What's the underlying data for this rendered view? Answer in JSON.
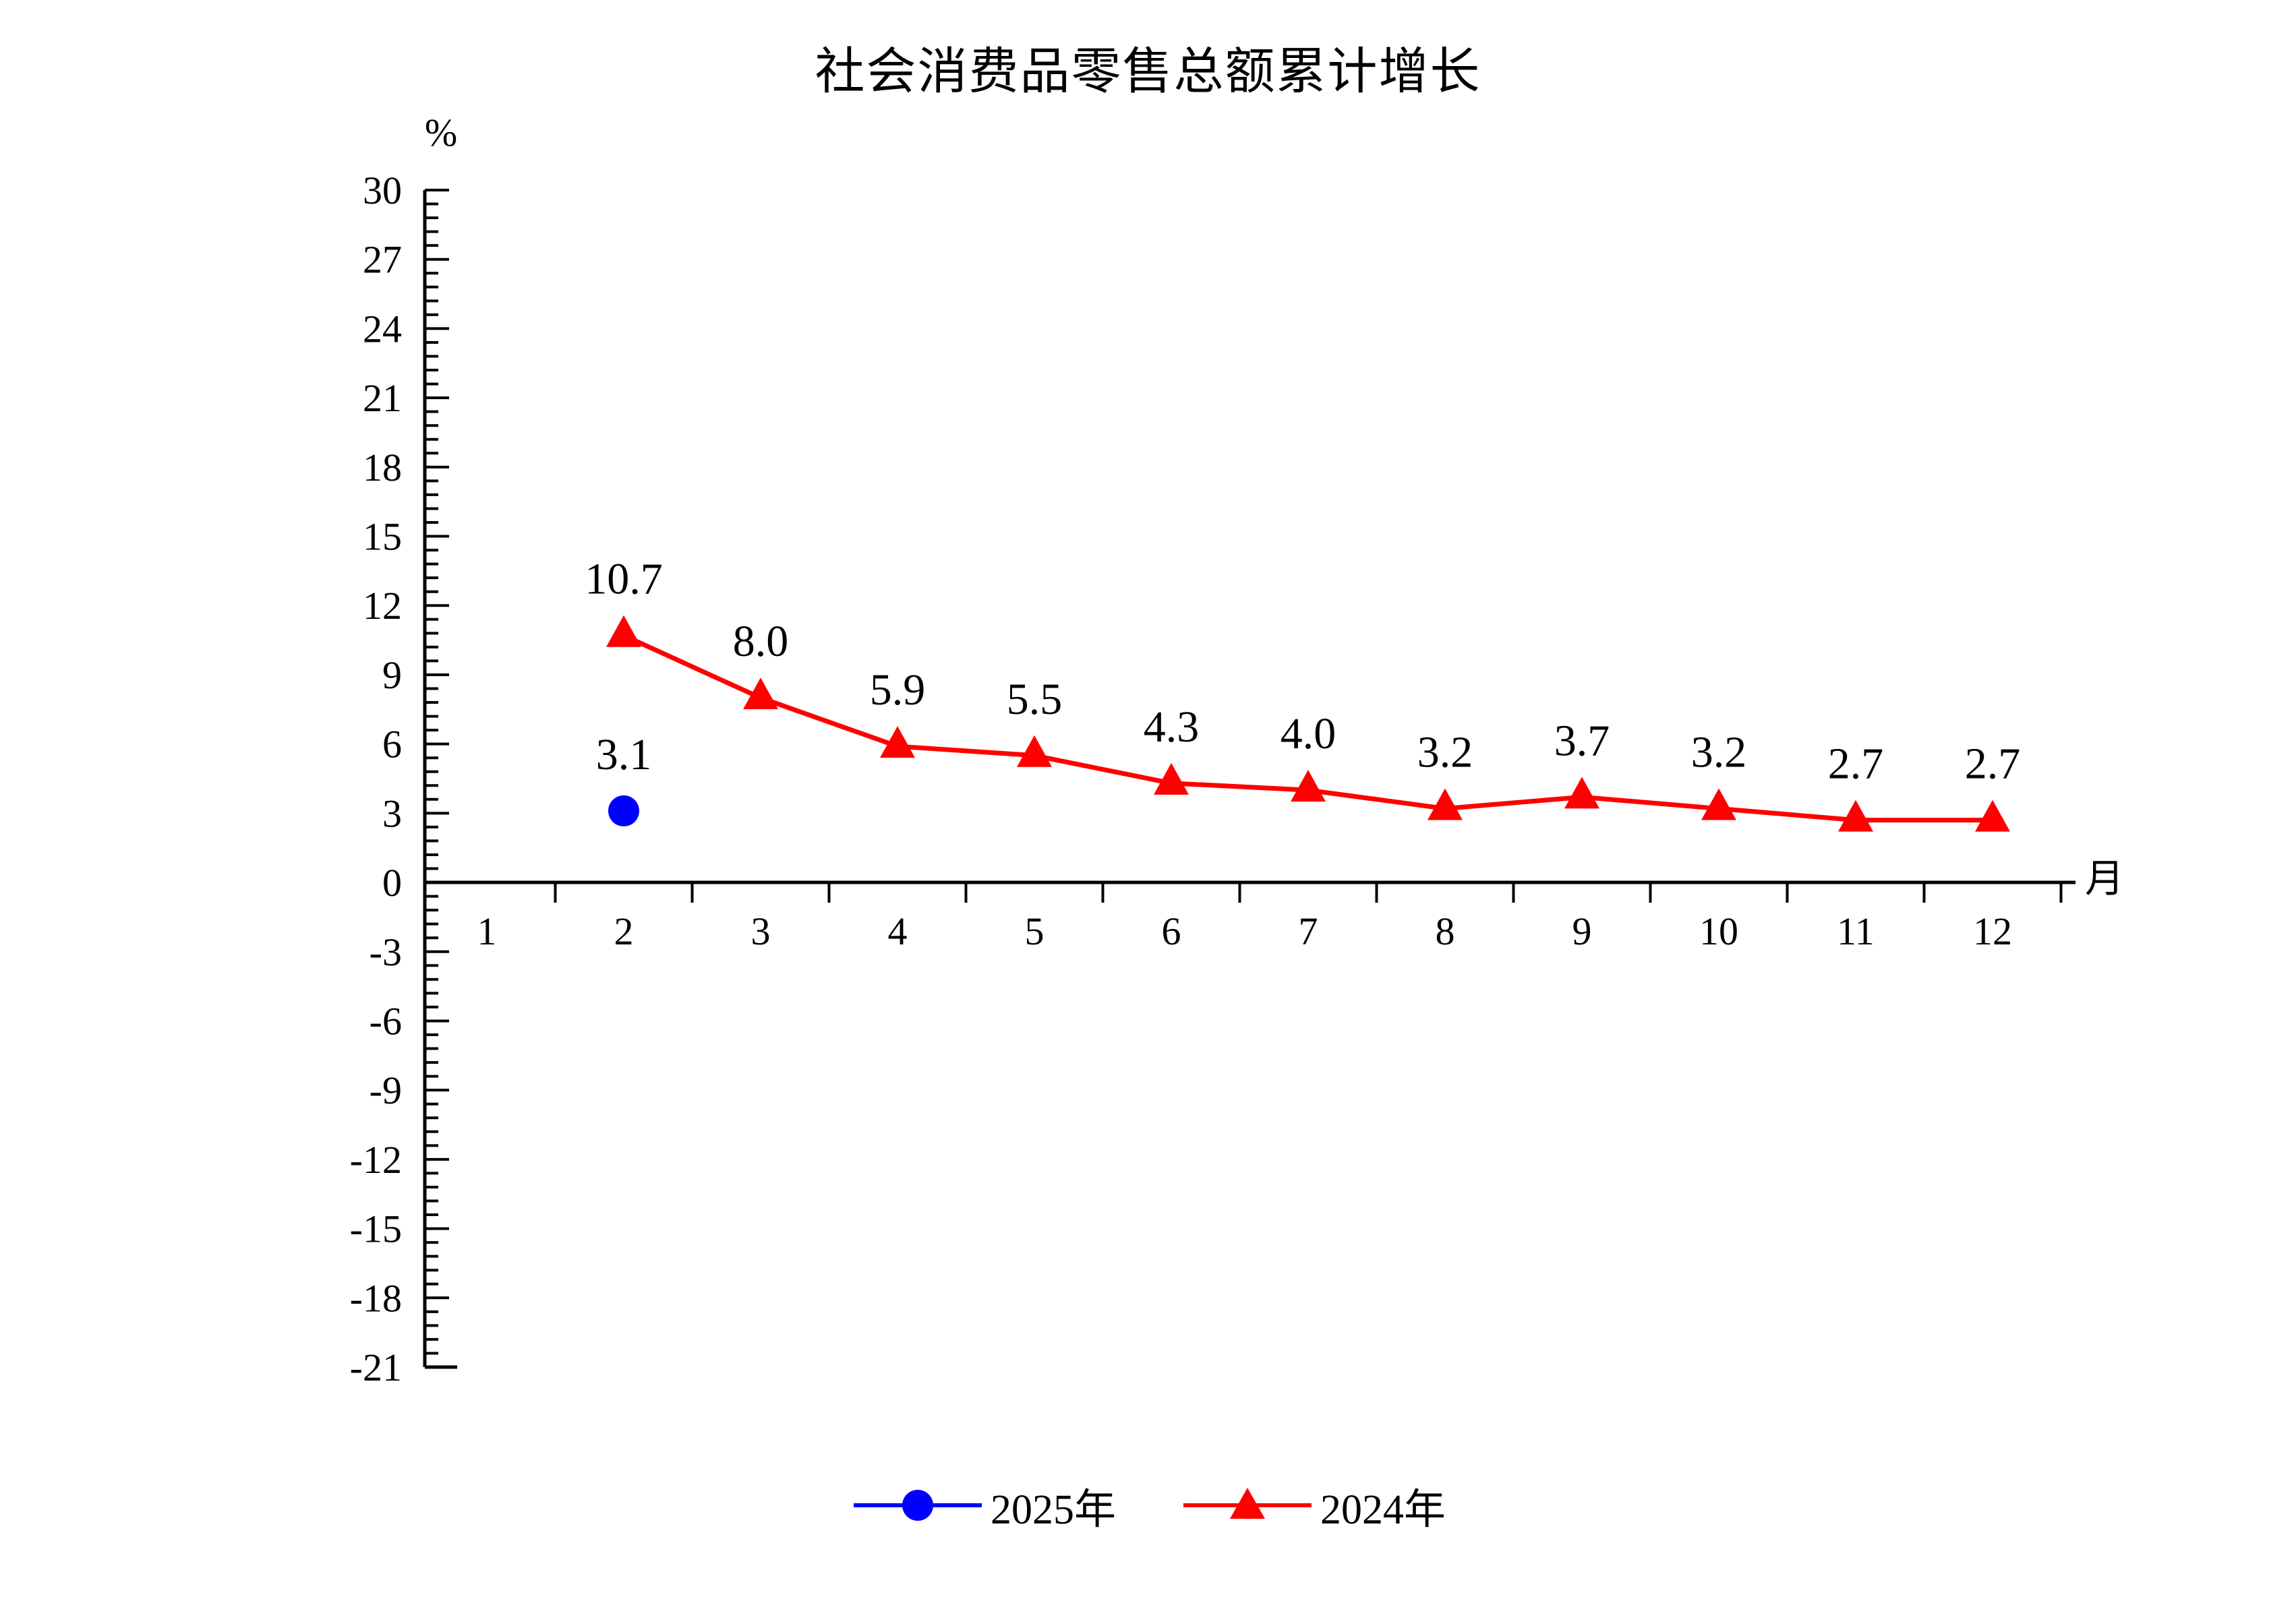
{
  "chart_data": {
    "type": "line",
    "title": "社会消费品零售总额累计增长",
    "ylabel": "%",
    "xlabel": "月",
    "x_categories": [
      1,
      2,
      3,
      4,
      5,
      6,
      7,
      8,
      9,
      10,
      11,
      12
    ],
    "y_axis": {
      "min": -21,
      "max": 30,
      "major_step": 3,
      "minor_step": 0.6
    },
    "grid": false,
    "legend_position": "bottom",
    "series": [
      {
        "name": "2025年",
        "color": "#0000ff",
        "marker": "circle",
        "points": [
          {
            "x": 2,
            "y": 3.1
          }
        ]
      },
      {
        "name": "2024年",
        "color": "#ff0000",
        "marker": "triangle",
        "points": [
          {
            "x": 2,
            "y": 10.7
          },
          {
            "x": 3,
            "y": 8.0
          },
          {
            "x": 4,
            "y": 5.9
          },
          {
            "x": 5,
            "y": 5.5
          },
          {
            "x": 6,
            "y": 4.3
          },
          {
            "x": 7,
            "y": 4.0
          },
          {
            "x": 8,
            "y": 3.2
          },
          {
            "x": 9,
            "y": 3.7
          },
          {
            "x": 10,
            "y": 3.2
          },
          {
            "x": 11,
            "y": 2.7
          },
          {
            "x": 12,
            "y": 2.7
          }
        ]
      }
    ]
  }
}
